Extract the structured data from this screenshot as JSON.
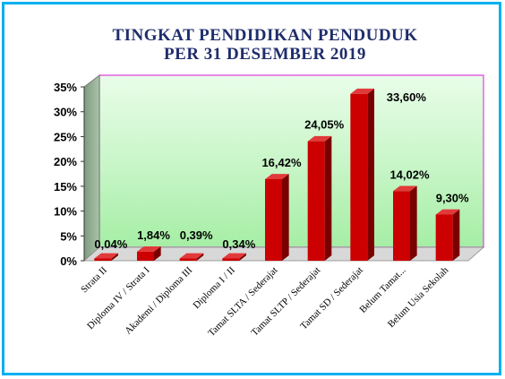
{
  "chart_data": {
    "type": "bar",
    "title_line1": "TINGKAT PENDIDIKAN PENDUDUK",
    "title_line2": "PER 31 DESEMBER 2019",
    "categories": [
      "Strata II",
      "Diploma IV / Strata I",
      "Akademi / Diploma III",
      "Diploma I / II",
      "Tamat SLTA / Sederajat",
      "Tamat SLTP / Sederajat",
      "Tamat SD / Sederajat",
      "Belum Tamat...",
      "Belum Usia Sekolah"
    ],
    "values": [
      0.04,
      1.84,
      0.39,
      0.34,
      16.42,
      24.05,
      33.6,
      14.02,
      9.3
    ],
    "data_labels": [
      "0,04%",
      "1,84%",
      "0,39%",
      "0,34%",
      "16,42%",
      "24,05%",
      "33,60%",
      "14,02%",
      "9,30%"
    ],
    "yticks": [
      "0%",
      "5%",
      "10%",
      "15%",
      "20%",
      "25%",
      "30%",
      "35%"
    ],
    "ylim": [
      0,
      35
    ],
    "grid": false,
    "legend": "none",
    "colors": {
      "bar_front": "#cc0000",
      "bar_side": "#7a0000",
      "bar_top": "#e23a3a",
      "plot_border": "#e040e0",
      "title": "#1f2d6b",
      "frame": "#00b0f0"
    }
  }
}
